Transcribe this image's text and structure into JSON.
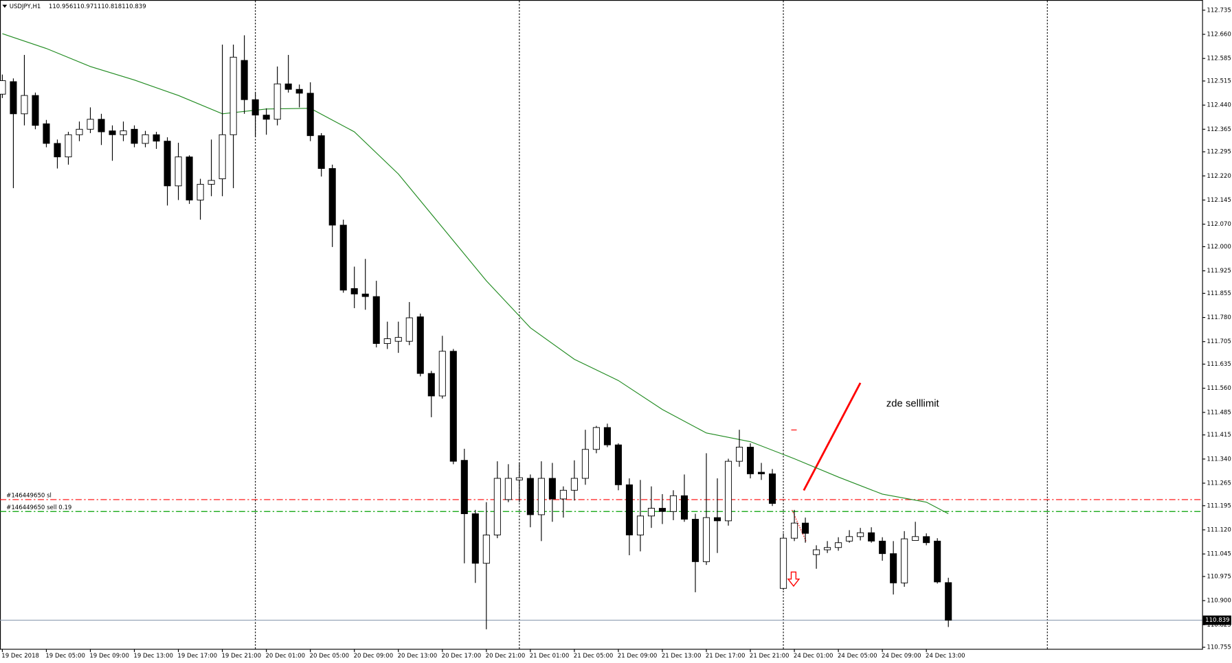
{
  "chart_data": {
    "type": "candlestick",
    "title": "USDJPY,H1",
    "categories": [
      "19 Dec 2018",
      null,
      null,
      null,
      "19 Dec 05:00",
      null,
      null,
      null,
      "19 Dec 09:00",
      null,
      null,
      null,
      "19 Dec 13:00",
      null,
      null,
      null,
      "19 Dec 17:00",
      null,
      null,
      null,
      "19 Dec 21:00",
      null,
      null,
      null,
      "20 Dec 01:00",
      null,
      null,
      null,
      "20 Dec 05:00",
      null,
      null,
      null,
      "20 Dec 09:00",
      null,
      null,
      null,
      "20 Dec 13:00",
      null,
      null,
      null,
      "20 Dec 17:00",
      null,
      null,
      null,
      "20 Dec 21:00",
      null,
      null,
      null,
      "21 Dec 01:00",
      null,
      null,
      null,
      "21 Dec 05:00",
      null,
      null,
      null,
      "21 Dec 09:00",
      null,
      null,
      null,
      "21 Dec 13:00",
      null,
      null,
      null,
      "21 Dec 17:00",
      null,
      null,
      null,
      "21 Dec 21:00",
      null,
      null,
      null,
      "24 Dec 01:00",
      null,
      null,
      null,
      "24 Dec 05:00",
      null,
      null,
      null,
      "24 Dec 09:00",
      null,
      null,
      null,
      "24 Dec 13:00",
      null,
      null
    ],
    "open": [
      112.474,
      112.513,
      112.413,
      112.47,
      112.382,
      112.321,
      112.279,
      112.348,
      112.365,
      112.396,
      112.36,
      112.348,
      112.365,
      112.321,
      112.348,
      112.328,
      112.189,
      112.279,
      112.145,
      112.194,
      112.211,
      112.348,
      112.579,
      112.457,
      112.409,
      112.396,
      112.506,
      112.489,
      112.477,
      112.345,
      112.243,
      112.067,
      111.87,
      111.853,
      111.845,
      111.699,
      111.706,
      111.706,
      111.782,
      111.606,
      111.536,
      111.675,
      111.336,
      111.17,
      111.016,
      111.104,
      111.214,
      111.275,
      111.28,
      111.167,
      111.28,
      111.216,
      111.243,
      111.28,
      111.37,
      111.438,
      111.384,
      111.26,
      111.104,
      111.163,
      111.187,
      111.177,
      111.226,
      111.153,
      111.021,
      111.158,
      111.148,
      111.333,
      111.377,
      111.299,
      111.294,
      110.938,
      111.094,
      111.141,
      111.043,
      111.058,
      111.065,
      111.085,
      111.099,
      111.111,
      111.085,
      111.046,
      110.955,
      111.087,
      111.099,
      111.085,
      110.956
    ],
    "high": [
      112.535,
      112.523,
      112.596,
      112.479,
      112.394,
      112.333,
      112.357,
      112.389,
      112.433,
      112.413,
      112.377,
      112.389,
      112.377,
      112.36,
      112.357,
      112.34,
      112.323,
      112.284,
      112.211,
      112.333,
      112.628,
      112.628,
      112.657,
      112.479,
      112.43,
      112.56,
      112.596,
      112.504,
      112.511,
      112.353,
      112.255,
      112.084,
      111.938,
      111.962,
      111.894,
      111.767,
      111.767,
      111.828,
      111.792,
      111.614,
      111.723,
      111.682,
      111.372,
      111.182,
      111.206,
      111.333,
      111.324,
      111.328,
      111.292,
      111.333,
      111.328,
      111.255,
      111.336,
      111.431,
      111.443,
      111.45,
      111.389,
      111.28,
      111.275,
      111.255,
      111.231,
      111.243,
      111.292,
      111.17,
      111.358,
      111.28,
      111.341,
      111.431,
      111.389,
      111.328,
      111.309,
      111.109,
      111.182,
      111.158,
      111.072,
      111.085,
      111.097,
      111.119,
      111.126,
      111.128,
      111.097,
      111.085,
      111.116,
      111.145,
      111.109,
      111.094,
      110.971
    ],
    "low": [
      112.462,
      112.182,
      112.377,
      112.365,
      112.309,
      112.243,
      112.255,
      112.328,
      112.353,
      112.316,
      112.267,
      112.328,
      112.309,
      112.309,
      112.304,
      112.128,
      112.145,
      112.133,
      112.084,
      112.157,
      112.157,
      112.182,
      112.413,
      112.34,
      112.348,
      112.377,
      112.479,
      112.433,
      112.328,
      112.218,
      111.999,
      111.857,
      111.809,
      111.804,
      111.687,
      111.682,
      111.67,
      111.694,
      111.597,
      111.47,
      111.528,
      111.324,
      111.016,
      110.955,
      110.811,
      111.094,
      111.206,
      111.206,
      111.128,
      111.085,
      111.145,
      111.158,
      111.211,
      111.26,
      111.358,
      111.377,
      111.243,
      111.041,
      111.053,
      111.126,
      111.138,
      111.15,
      111.145,
      110.926,
      111.011,
      111.048,
      111.133,
      111.316,
      111.28,
      111.275,
      111.194,
      110.933,
      111.085,
      111.08,
      110.999,
      111.048,
      111.055,
      111.08,
      111.087,
      111.08,
      111.024,
      110.919,
      110.943,
      111.087,
      111.072,
      110.953,
      110.818
    ],
    "close": [
      112.516,
      112.413,
      112.47,
      112.377,
      112.321,
      112.279,
      112.348,
      112.365,
      112.396,
      112.357,
      112.348,
      112.36,
      112.321,
      112.348,
      112.328,
      112.189,
      112.279,
      112.145,
      112.194,
      112.206,
      112.348,
      112.589,
      112.457,
      112.409,
      112.396,
      112.506,
      112.489,
      112.477,
      112.345,
      112.243,
      112.067,
      111.865,
      111.853,
      111.845,
      111.699,
      111.714,
      111.718,
      111.779,
      111.606,
      111.536,
      111.675,
      111.333,
      111.17,
      111.016,
      111.104,
      111.28,
      111.28,
      111.282,
      111.167,
      111.28,
      111.216,
      111.243,
      111.28,
      111.37,
      111.438,
      111.384,
      111.26,
      111.104,
      111.163,
      111.187,
      111.177,
      111.226,
      111.153,
      111.021,
      111.158,
      111.148,
      111.333,
      111.377,
      111.294,
      111.294,
      111.202,
      111.094,
      111.141,
      111.109,
      111.058,
      111.065,
      111.08,
      111.099,
      111.111,
      111.085,
      111.046,
      110.955,
      111.092,
      111.099,
      111.08,
      110.958,
      110.839
    ],
    "up_color": "#ffffff",
    "down_color": "#000000",
    "ylim": [
      110.75,
      112.76
    ],
    "yticks": [
      112.735,
      {
        "value": 112.66,
        "label": "112.660"
      },
      112.585,
      112.515,
      {
        "value": 112.44,
        "label": "112.440"
      },
      112.365,
      112.295,
      {
        "value": 112.22,
        "label": "112.220"
      },
      112.145,
      {
        "value": 112.07,
        "label": "112.070"
      },
      {
        "value": 112,
        "label": "112.000"
      },
      111.925,
      111.855,
      {
        "value": 111.78,
        "label": "111.780"
      },
      111.705,
      111.635,
      {
        "value": 111.56,
        "label": "111.560"
      },
      111.485,
      111.415,
      {
        "value": 111.34,
        "label": "111.340"
      },
      111.265,
      111.195,
      {
        "value": 111.12,
        "label": "111.120"
      },
      111.045,
      110.975,
      {
        "value": 110.9,
        "label": "110.900"
      },
      110.825,
      110.755
    ],
    "ma": {
      "color": "#1f8a1f",
      "x": [
        0,
        4,
        8,
        12,
        16,
        20,
        24,
        28,
        32,
        36,
        40,
        44,
        48,
        52,
        56,
        60,
        64,
        68,
        72,
        76,
        80,
        84,
        86
      ],
      "values": [
        112.662,
        112.616,
        112.56,
        112.518,
        112.47,
        112.413,
        112.428,
        112.43,
        112.357,
        112.226,
        112.06,
        111.894,
        111.748,
        111.65,
        111.584,
        111.494,
        111.421,
        111.394,
        111.341,
        111.284,
        111.231,
        111.206,
        111.17
      ]
    },
    "order_lines": [
      {
        "label": "#146449650 sl",
        "value": 111.214,
        "color": "#ff0000"
      },
      {
        "label": "#146449650 sell 0.19",
        "value": 111.177,
        "color": "#00a000"
      }
    ],
    "bid": 110.839,
    "annotation": "zde selllimit"
  }
}
